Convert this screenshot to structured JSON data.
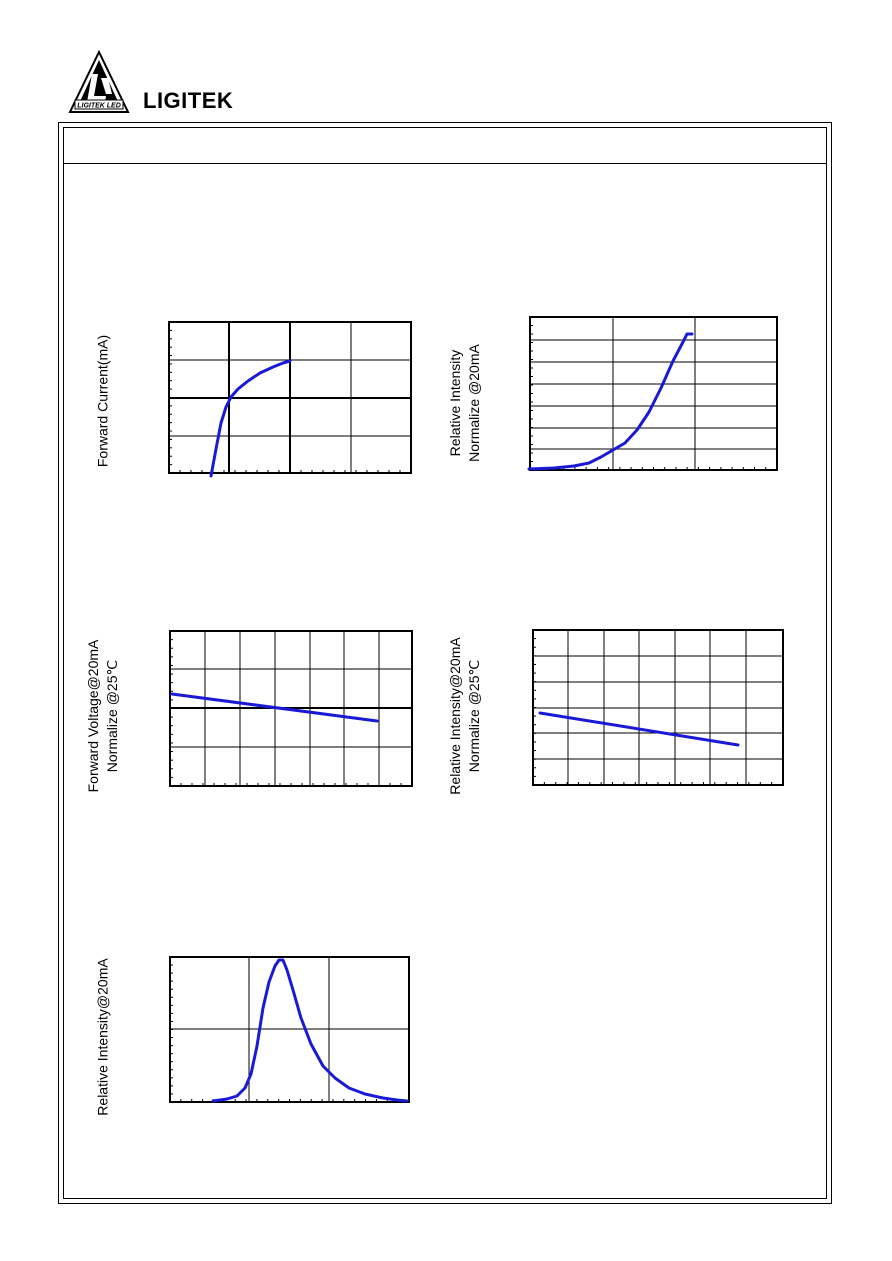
{
  "header": {
    "brand": "LIGITEK",
    "logo_text": "LIGITEK LED"
  },
  "charts": {
    "if_vf": {
      "ylabel": "Forward Current(mA)"
    },
    "iv_if": {
      "ylabel_line1": "Relative Intensity",
      "ylabel_line2": "Normalize @20mA"
    },
    "vf_ta": {
      "ylabel_line1": "Forward Voltage@20mA",
      "ylabel_line2": "Normalize @25℃"
    },
    "iv_ta": {
      "ylabel_line1": "Relative Intensity@20mA",
      "ylabel_line2": "Normalize @25℃"
    },
    "spectrum": {
      "ylabel": "Relative Intensity@20mA"
    }
  },
  "colors": {
    "curve": "#1a1ad6",
    "frame": "#000000"
  }
}
